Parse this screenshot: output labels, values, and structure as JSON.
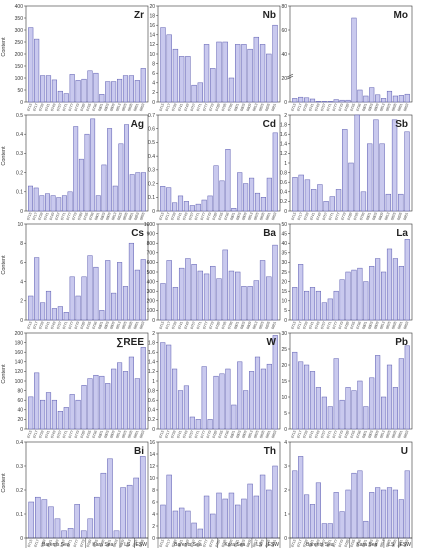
{
  "figure": {
    "y_label": "Content"
  },
  "style": {
    "bar_fill": "#c9c9ee",
    "bar_stroke": "#5b5bb0",
    "axis": "#333333"
  },
  "samples": [
    "6715",
    "6717",
    "6739",
    "6741",
    "6749",
    "6757",
    "6771",
    "6777",
    "6779",
    "6789",
    "6795",
    "6796",
    "6801",
    "6803",
    "6809",
    "6813",
    "6825",
    "6835",
    "6851",
    "6853",
    "6855",
    "6873",
    "6875"
  ],
  "regions": [
    "Barents Sea",
    "Kara Sea",
    "LS",
    "ESW"
  ],
  "chart_data": [
    {
      "type": "bar",
      "title": "Zr",
      "ylim": [
        0,
        400
      ],
      "yticks": [
        0,
        50,
        100,
        150,
        200,
        250,
        300,
        350,
        400
      ],
      "values": [
        310,
        262,
        110,
        110,
        92,
        45,
        35,
        115,
        90,
        95,
        130,
        120,
        32,
        85,
        85,
        95,
        110,
        110,
        90,
        140
      ]
    },
    {
      "type": "bar",
      "title": "Nb",
      "ylim": [
        0,
        20
      ],
      "yticks": [
        0,
        2,
        4,
        6,
        8,
        10,
        12,
        14,
        16,
        18,
        20
      ],
      "values": [
        15.5,
        14,
        11,
        9.5,
        9.5,
        3.5,
        4,
        12,
        7,
        12.5,
        12.5,
        5,
        12,
        12,
        11,
        13.5,
        12,
        10,
        16
      ]
    },
    {
      "type": "bar",
      "title": "Mo",
      "ylim": [
        0,
        80
      ],
      "yticks": [
        0,
        20,
        40,
        60,
        80
      ],
      "broken_axis": true,
      "values": [
        3,
        4,
        3.5,
        2.5,
        0.5,
        0.5,
        0.5,
        2,
        1.5,
        1.5,
        70,
        10,
        5,
        12,
        6,
        3,
        9,
        5,
        5.5,
        6.5
      ]
    },
    {
      "type": "bar",
      "title": "Ag",
      "ylim": [
        0,
        0.5
      ],
      "yticks": [
        0,
        0.1,
        0.2,
        0.3,
        0.4,
        0.5
      ],
      "values": [
        0.13,
        0.12,
        0.08,
        0.09,
        0.08,
        0.07,
        0.08,
        0.1,
        0.44,
        0.27,
        0.4,
        0.48,
        0.08,
        0.24,
        0.43,
        0.13,
        0.35,
        0.45,
        0.19,
        0.2,
        0.2
      ]
    },
    {
      "type": "bar",
      "title": "Cd",
      "ylim": [
        0,
        0.7
      ],
      "yticks": [
        0,
        0.1,
        0.2,
        0.3,
        0.4,
        0.5,
        0.6,
        0.7
      ],
      "values": [
        0.18,
        0.17,
        0.06,
        0.11,
        0.07,
        0.04,
        0.05,
        0.08,
        0.11,
        0.33,
        0.22,
        0.45,
        0.02,
        0.28,
        0.2,
        0.24,
        0.13,
        0.1,
        0.24,
        0.57
      ]
    },
    {
      "type": "bar",
      "title": "Sb",
      "ylim": [
        0,
        2
      ],
      "yticks": [
        0,
        0.2,
        0.4,
        0.6,
        0.8,
        1,
        1.2,
        1.4,
        1.6,
        1.8,
        2
      ],
      "values": [
        0.7,
        0.75,
        0.65,
        0.45,
        0.55,
        0.2,
        0.3,
        0.45,
        1.7,
        1.0,
        2.0,
        0.4,
        1.4,
        1.9,
        1.4,
        0.35,
        1.9,
        0.35,
        1.65
      ]
    },
    {
      "type": "bar",
      "title": "Cs",
      "ylim": [
        0,
        10
      ],
      "yticks": [
        0,
        2,
        4,
        6,
        8,
        10
      ],
      "values": [
        2.5,
        6.5,
        1.8,
        3,
        1.2,
        1.4,
        0.8,
        4.5,
        2.5,
        4.5,
        6.7,
        5.5,
        1,
        6.2,
        2.8,
        6,
        3.5,
        8,
        5.2,
        6.3
      ]
    },
    {
      "type": "bar",
      "title": "Ba",
      "ylim": [
        0,
        1000
      ],
      "yticks": [
        0,
        100,
        200,
        300,
        400,
        500,
        600,
        700,
        800,
        900,
        1000
      ],
      "values": [
        380,
        620,
        340,
        540,
        640,
        580,
        510,
        480,
        560,
        430,
        730,
        510,
        500,
        350,
        350,
        410,
        620,
        450,
        780
      ]
    },
    {
      "type": "bar",
      "title": "La",
      "ylim": [
        0,
        50
      ],
      "yticks": [
        0,
        5,
        10,
        15,
        20,
        25,
        30,
        35,
        40,
        45,
        50
      ],
      "values": [
        17,
        29,
        15,
        17,
        15,
        9,
        11,
        15,
        21,
        25,
        26,
        27,
        20,
        28,
        32,
        25,
        37,
        32,
        28,
        42
      ]
    },
    {
      "type": "bar",
      "title": "∑REE",
      "ylim": [
        0,
        200
      ],
      "yticks": [
        0,
        20,
        40,
        60,
        80,
        100,
        120,
        140,
        160,
        180,
        200
      ],
      "values": [
        67,
        117,
        60,
        76,
        60,
        37,
        45,
        72,
        60,
        91,
        105,
        112,
        110,
        95,
        125,
        138,
        120,
        150,
        105,
        170
      ]
    },
    {
      "type": "bar",
      "title": "W",
      "ylim": [
        0,
        2
      ],
      "yticks": [
        0,
        0.2,
        0.4,
        0.6,
        0.8,
        1,
        1.2,
        1.4,
        1.6,
        1.8,
        2
      ],
      "values": [
        1.8,
        1.75,
        1.25,
        0.8,
        0.9,
        0.25,
        0.2,
        1.3,
        0.2,
        1.1,
        1.15,
        1.25,
        0.5,
        1.4,
        0.8,
        1.2,
        1.5,
        1.25,
        1.35,
        1.95
      ]
    },
    {
      "type": "bar",
      "title": "Pb",
      "ylim": [
        0,
        30
      ],
      "yticks": [
        0,
        5,
        10,
        15,
        20,
        25,
        30
      ],
      "values": [
        24,
        21,
        20,
        18,
        13,
        10,
        7,
        22,
        9,
        13,
        12,
        15,
        7,
        16,
        23,
        10,
        20,
        13,
        22,
        26
      ]
    },
    {
      "type": "bar",
      "title": "Bi",
      "ylim": [
        0,
        0.4
      ],
      "yticks": [
        0,
        0.1,
        0.2,
        0.3,
        0.4
      ],
      "values": [
        0.15,
        0.17,
        0.16,
        0.13,
        0.08,
        0.03,
        0.04,
        0.14,
        0.03,
        0.08,
        0.17,
        0.27,
        0.33,
        0.03,
        0.21,
        0.22,
        0.25,
        0.34
      ]
    },
    {
      "type": "bar",
      "title": "Th",
      "ylim": [
        0,
        16
      ],
      "yticks": [
        0,
        2,
        4,
        6,
        8,
        10,
        12,
        14,
        16
      ],
      "values": [
        5.5,
        10.5,
        4.5,
        5,
        4.5,
        2.5,
        1.5,
        7,
        4,
        7.5,
        6.5,
        7.5,
        5.5,
        6.5,
        9,
        7,
        10.5,
        8,
        12
      ]
    },
    {
      "type": "bar",
      "title": "U",
      "ylim": [
        0,
        4
      ],
      "yticks": [
        0,
        1,
        2,
        3,
        4
      ],
      "values": [
        2.8,
        3.4,
        1.8,
        1.4,
        2.3,
        0.6,
        0.6,
        1.9,
        1.1,
        2.0,
        2.7,
        2.8,
        0.7,
        1.9,
        2.1,
        2.0,
        2.1,
        2.0,
        1.6,
        2.8
      ]
    }
  ]
}
